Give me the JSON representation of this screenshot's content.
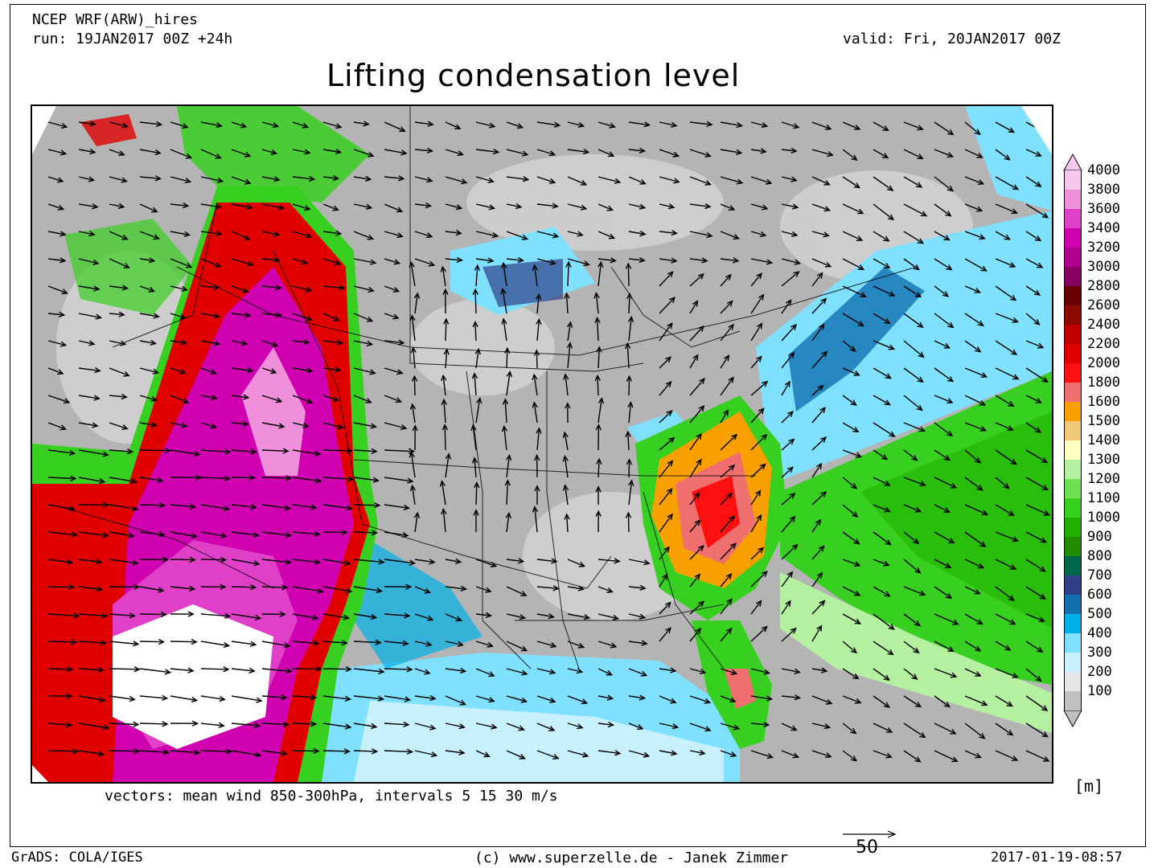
{
  "header": {
    "model": "NCEP WRF(ARW)_hires",
    "run": "run: 19JAN2017 00Z +24h",
    "valid": "valid: Fri, 20JAN2017 00Z",
    "title": "Lifting condensation level"
  },
  "footer": {
    "vectors_note": "vectors: mean wind 850-300hPa, intervals 5 15 30 m/s",
    "grads": "GrADS: COLA/IGES",
    "credit": "(c) www.superzelle.de - Janek Zimmer",
    "timestamp": "2017-01-19-08:57",
    "reference_vector_label": "50"
  },
  "legend": {
    "unit": "[m]",
    "levels": [
      {
        "value": "4000",
        "color": "#f8c8ec"
      },
      {
        "value": "3800",
        "color": "#f090dc"
      },
      {
        "value": "3600",
        "color": "#e040c8"
      },
      {
        "value": "3400",
        "color": "#d000b0"
      },
      {
        "value": "3200",
        "color": "#b00090"
      },
      {
        "value": "3000",
        "color": "#880060"
      },
      {
        "value": "2800",
        "color": "#6a0000"
      },
      {
        "value": "2600",
        "color": "#8c0a00"
      },
      {
        "value": "2400",
        "color": "#c00000"
      },
      {
        "value": "2200",
        "color": "#e00000"
      },
      {
        "value": "2000",
        "color": "#ff1010"
      },
      {
        "value": "1800",
        "color": "#f07070"
      },
      {
        "value": "1600",
        "color": "#f8a000"
      },
      {
        "value": "1500",
        "color": "#f0c878"
      },
      {
        "value": "1400",
        "color": "#ffffc0"
      },
      {
        "value": "1300",
        "color": "#b4f0a0"
      },
      {
        "value": "1200",
        "color": "#70e050"
      },
      {
        "value": "1100",
        "color": "#38d020"
      },
      {
        "value": "1000",
        "color": "#20b000"
      },
      {
        "value": "900",
        "color": "#208c00"
      },
      {
        "value": "800",
        "color": "#006848"
      },
      {
        "value": "700",
        "color": "#304088"
      },
      {
        "value": "600",
        "color": "#1070b0"
      },
      {
        "value": "500",
        "color": "#00b0e8"
      },
      {
        "value": "400",
        "color": "#80e0ff"
      },
      {
        "value": "300",
        "color": "#c8f0ff"
      },
      {
        "value": "200",
        "color": "#e6e6e6"
      },
      {
        "value": "100",
        "color": "#c0c0c0"
      }
    ]
  }
}
